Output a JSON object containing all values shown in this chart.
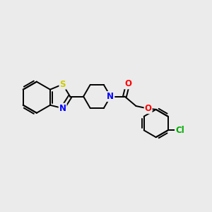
{
  "background_color": "#ebebeb",
  "line_color": "black",
  "line_width": 1.4,
  "atom_colors": {
    "S": "#cccc00",
    "N": "#0000ff",
    "O": "#ff0000",
    "Cl": "#00aa00",
    "C": "black"
  },
  "font_size": 8.5,
  "figsize": [
    3.0,
    3.0
  ],
  "dpi": 100,
  "xlim": [
    0,
    12
  ],
  "ylim": [
    0,
    12
  ]
}
